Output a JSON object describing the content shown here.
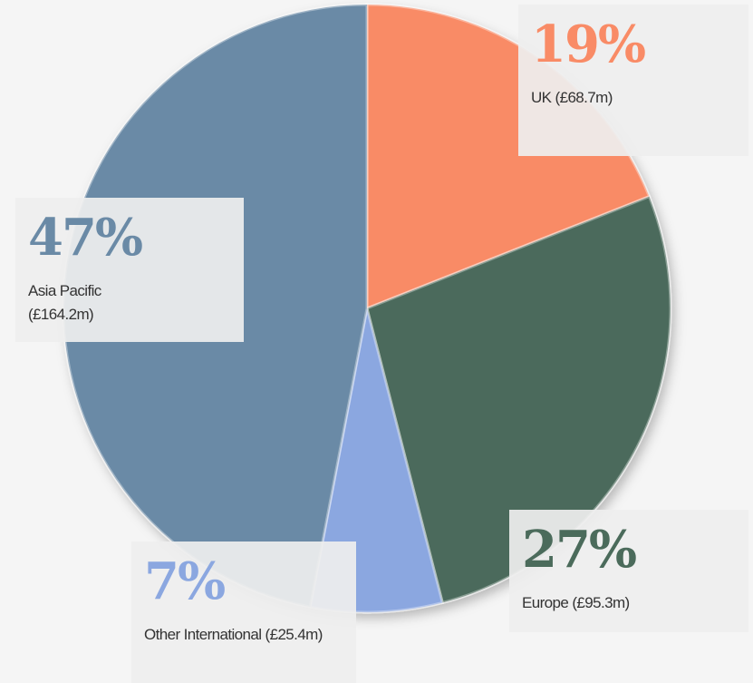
{
  "chart_data": {
    "type": "pie",
    "categories": [
      "UK (£68.7m)",
      "Europe (£95.3m)",
      "Other International (£25.4m)",
      "Asia Pacific (£164.2m)"
    ],
    "values": [
      19,
      27,
      7,
      47
    ],
    "value_labels": [
      "19%",
      "27%",
      "7%",
      "47%"
    ],
    "colors": [
      "#f98b66",
      "#4b6b5b",
      "#8ba7e0",
      "#6a8aa6"
    ]
  }
}
